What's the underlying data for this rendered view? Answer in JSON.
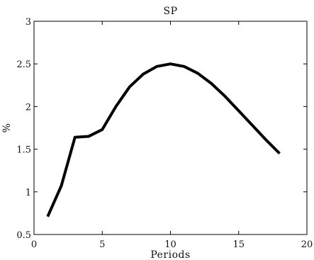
{
  "chart_data": {
    "type": "line",
    "title": "SP",
    "xlabel": "Periods",
    "ylabel": "%",
    "xlim": [
      0,
      20
    ],
    "ylim": [
      0.5,
      3
    ],
    "xticks": [
      0,
      5,
      10,
      15,
      20
    ],
    "yticks": [
      0.5,
      1,
      1.5,
      2,
      2.5,
      3
    ],
    "x_tick_labels": [
      "0",
      "5",
      "10",
      "15",
      "20"
    ],
    "y_tick_labels": [
      "0.5",
      "1",
      "1.5",
      "2",
      "2.5",
      "3"
    ],
    "grid": false,
    "series": [
      {
        "color": "#000000",
        "x": [
          1,
          2,
          3,
          4,
          5,
          6,
          7,
          8,
          9,
          10,
          11,
          12,
          13,
          14,
          15,
          16,
          17,
          18
        ],
        "y": [
          0.71,
          1.07,
          1.64,
          1.65,
          1.73,
          2.0,
          2.23,
          2.38,
          2.47,
          2.5,
          2.47,
          2.39,
          2.27,
          2.12,
          1.95,
          1.78,
          1.61,
          1.45
        ]
      }
    ]
  }
}
